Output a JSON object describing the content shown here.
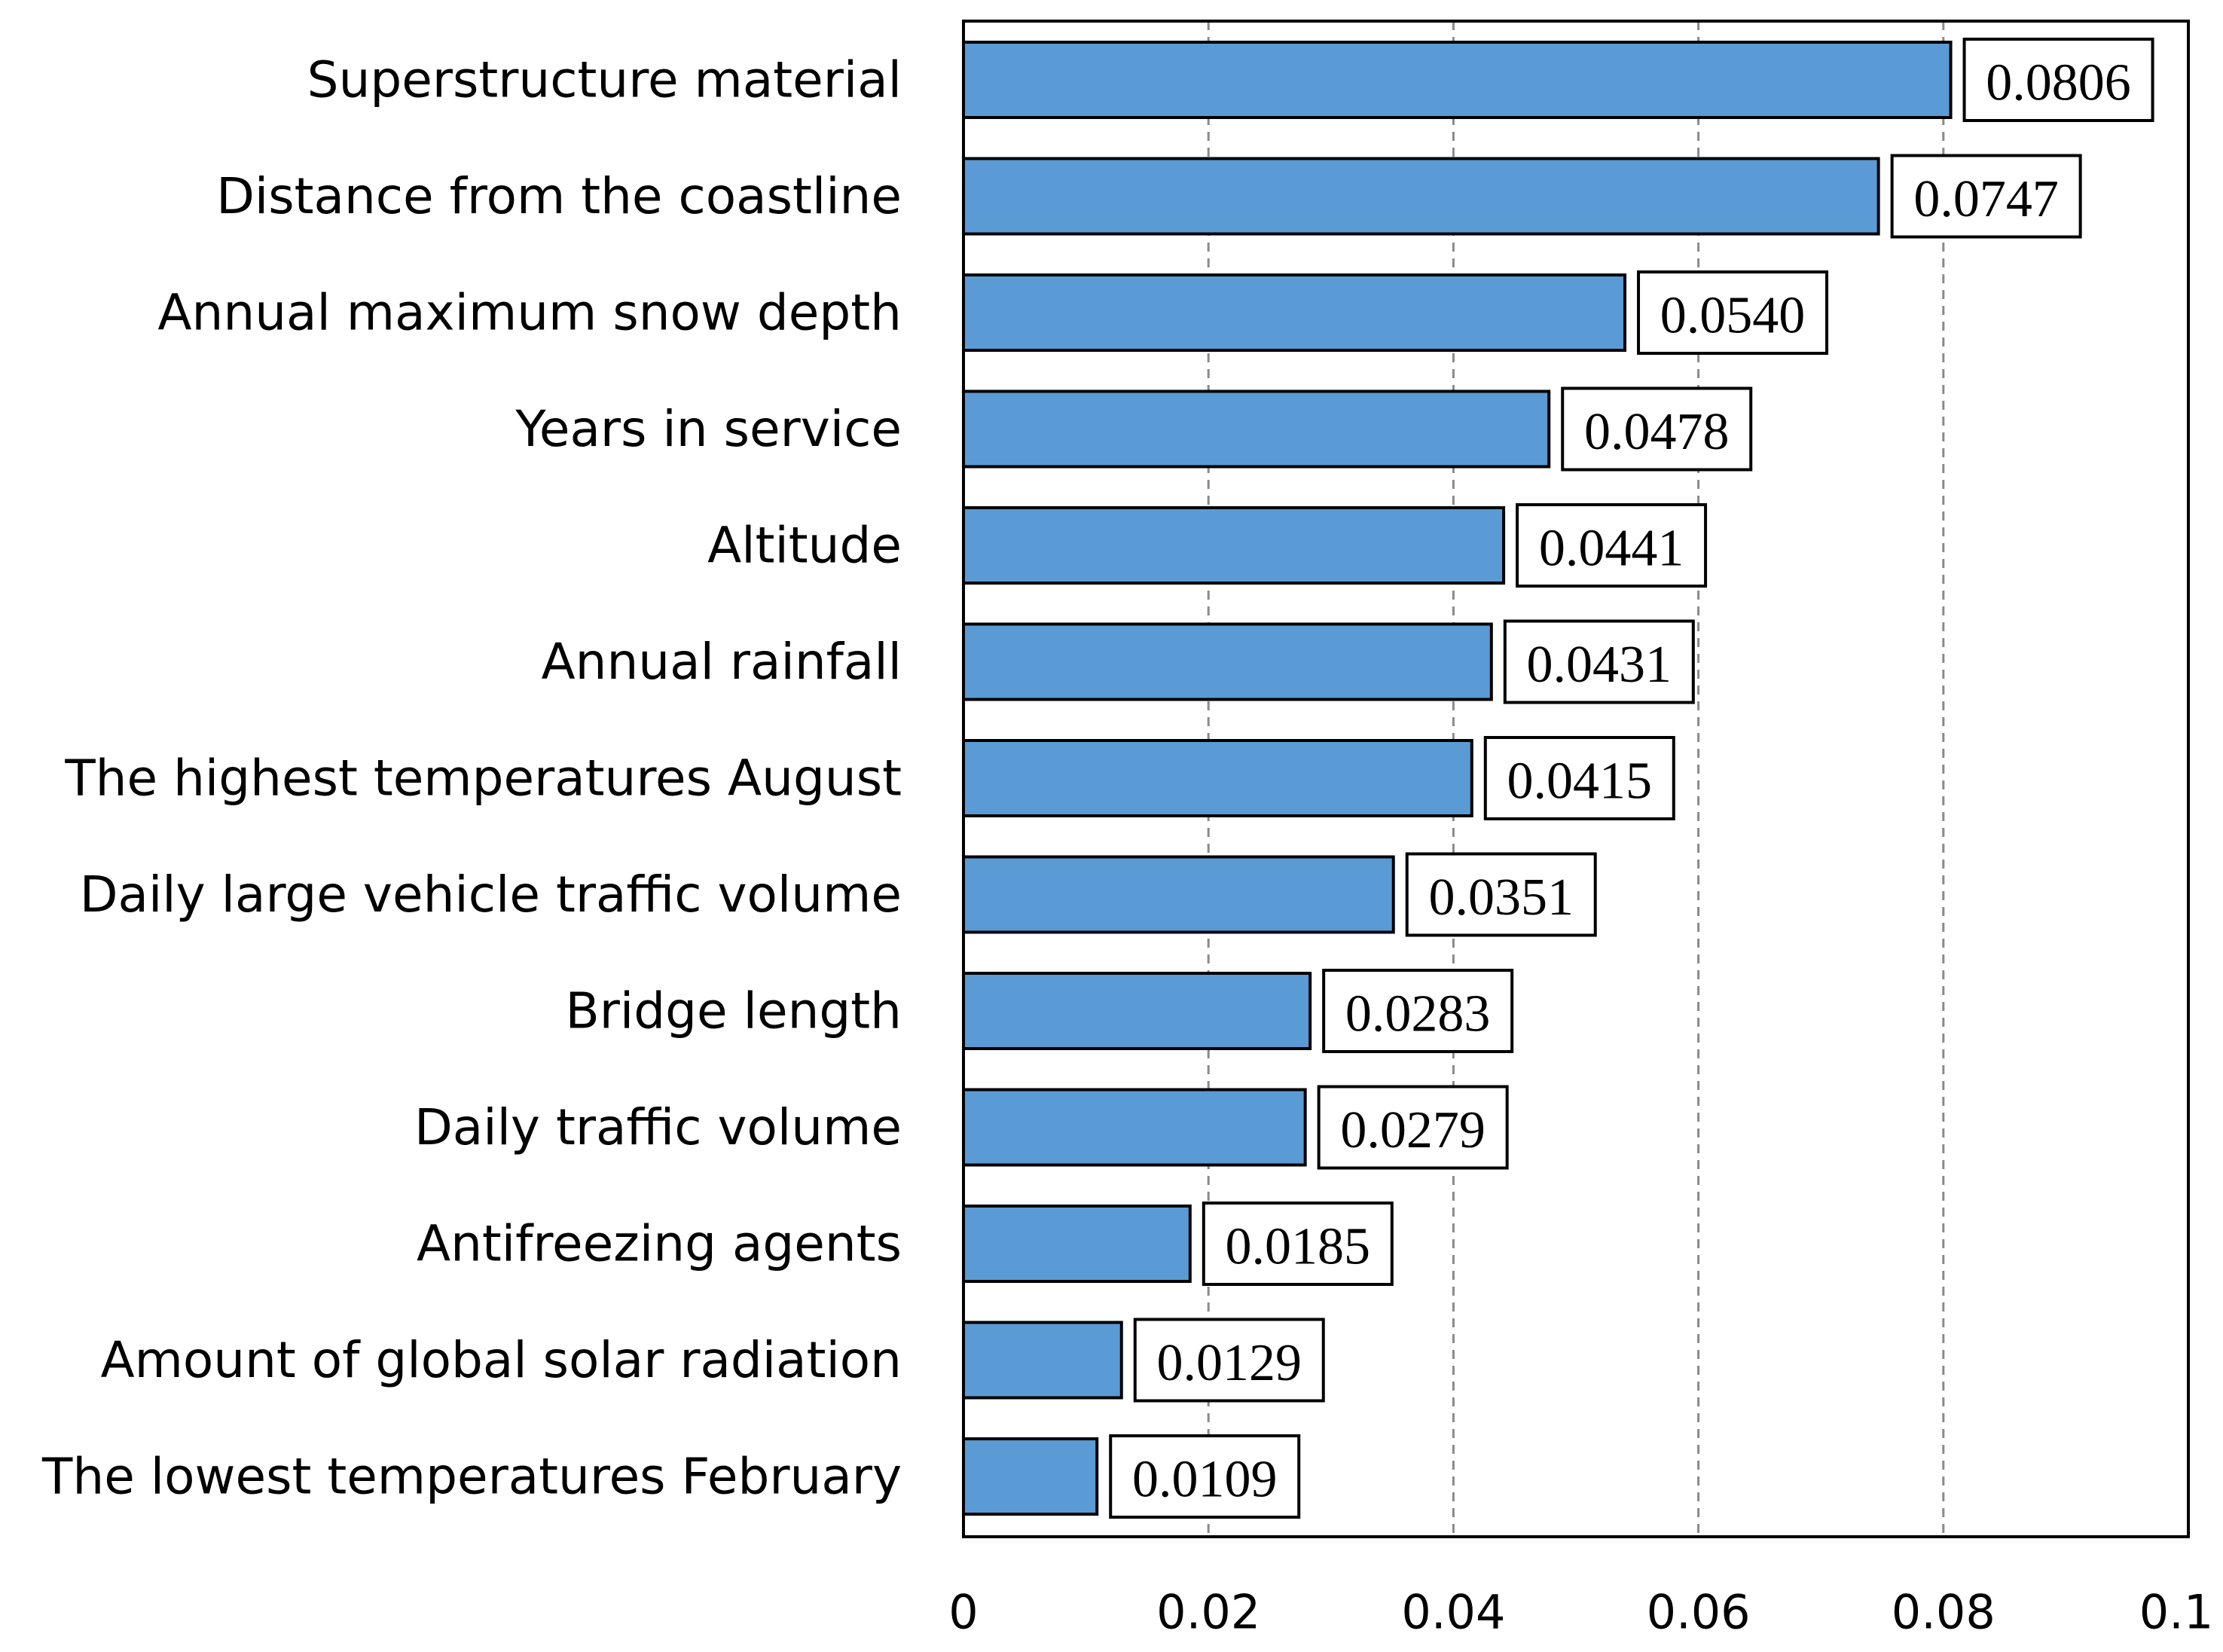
{
  "chart_data": {
    "type": "bar",
    "orientation": "horizontal",
    "title": "",
    "xlabel": "",
    "ylabel": "",
    "xlim": [
      0,
      0.1
    ],
    "x_ticks": [
      0,
      0.02,
      0.04,
      0.06,
      0.08,
      0.1
    ],
    "x_tick_labels": [
      "0",
      "0.02",
      "0.04",
      "0.06",
      "0.08",
      "0.1"
    ],
    "grid": "vertical dashed",
    "bar_color": "#5b9bd5",
    "categories": [
      "Superstructure material",
      "Distance from the coastline",
      "Annual maximum snow depth",
      "Years in service",
      "Altitude",
      "Annual rainfall",
      "The highest temperatures August",
      "Daily large vehicle traffic volume",
      "Bridge length",
      "Daily traffic volume",
      "Antifreezing agents",
      "Amount of global solar radiation",
      "The lowest temperatures February"
    ],
    "values": [
      0.0806,
      0.0747,
      0.054,
      0.0478,
      0.0441,
      0.0431,
      0.0415,
      0.0351,
      0.0283,
      0.0279,
      0.0185,
      0.0129,
      0.0109
    ],
    "value_labels": [
      "0.0806",
      "0.0747",
      "0.0540",
      "0.0478",
      "0.0441",
      "0.0431",
      "0.0415",
      "0.0351",
      "0.0283",
      "0.0279",
      "0.0185",
      "0.0129",
      "0.0109"
    ]
  }
}
